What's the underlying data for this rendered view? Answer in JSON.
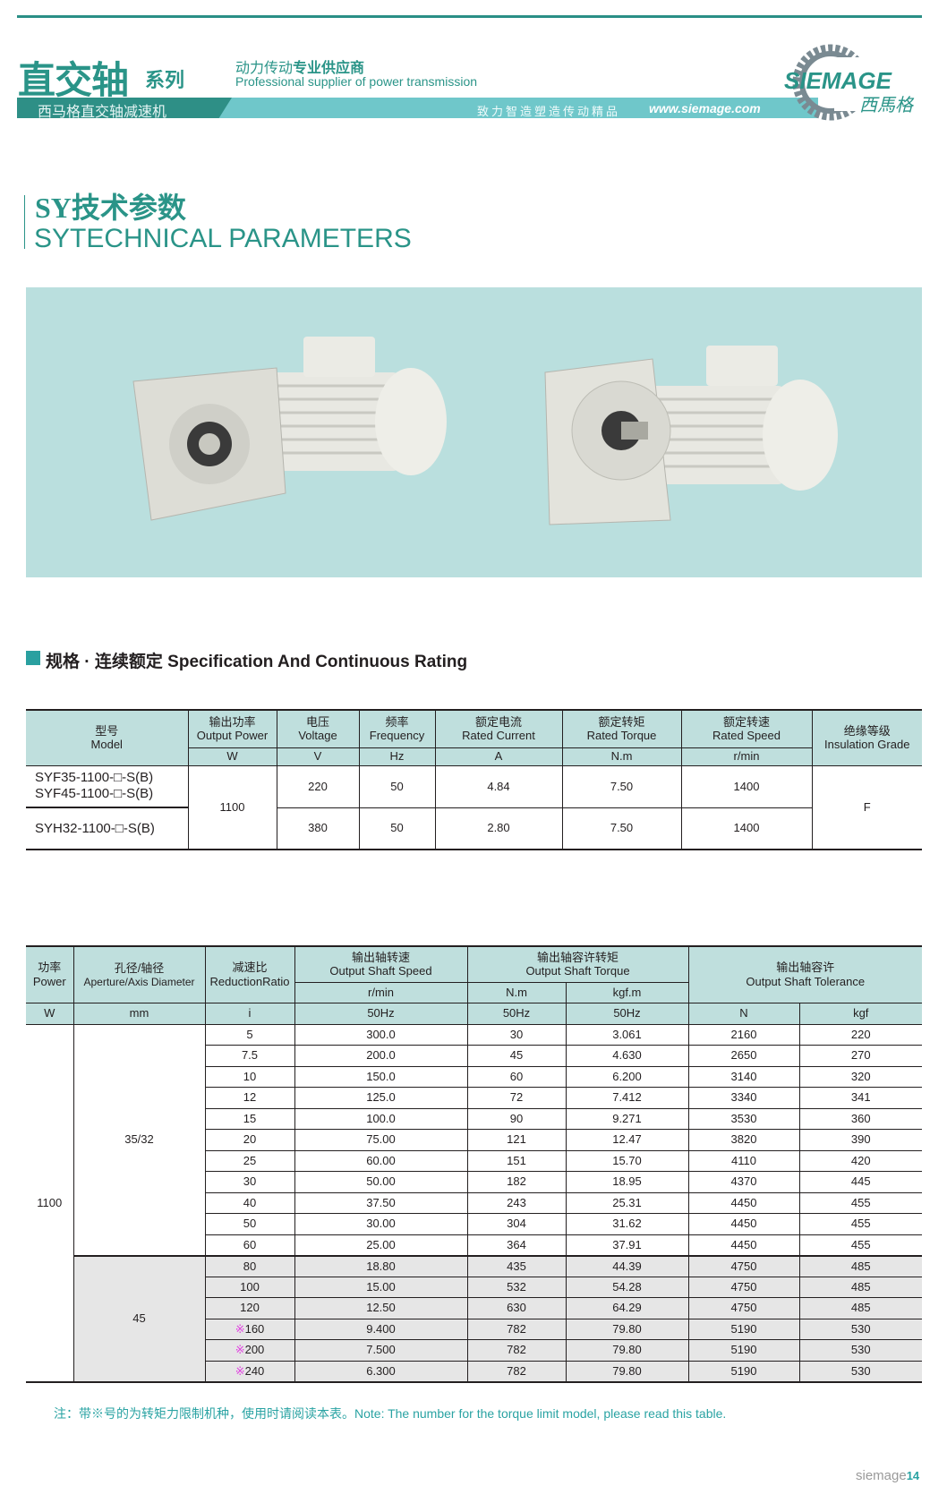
{
  "header": {
    "series_title": "直交轴",
    "series_suffix": "系列",
    "slogan_cn_light": "动力传动",
    "slogan_cn_bold": "专业供应商",
    "slogan_en": "Professional supplier of power transmission",
    "banner_left": "西马格直交轴减速机",
    "banner_motto": "致力智造塑造传动精品",
    "banner_url": "www.siemage.com",
    "logo_text": "SIEMAGE",
    "logo_cn": "西馬格"
  },
  "section": {
    "title": "SY技术参数",
    "subtitle": "SYTECHNICAL PARAMETERS"
  },
  "spec_heading": "规格 · 连续额定 Specification And Continuous Rating",
  "colors": {
    "accent": "#2a9488",
    "banner": "#6fc7ca",
    "header_bg": "#bfdfdd",
    "photo_bg": "#badfde",
    "mark": "#e040e0"
  },
  "table1": {
    "headers": [
      {
        "cn": "型号",
        "en": "Model"
      },
      {
        "cn": "输出功率",
        "en": "Output Power",
        "unit": "W"
      },
      {
        "cn": "电压",
        "en": "Voltage",
        "unit": "V"
      },
      {
        "cn": "频率",
        "en": "Frequency",
        "unit": "Hz"
      },
      {
        "cn": "额定电流",
        "en": "Rated Current",
        "unit": "A"
      },
      {
        "cn": "额定转矩",
        "en": "Rated Torque",
        "unit": "N.m"
      },
      {
        "cn": "额定转速",
        "en": "Rated Speed",
        "unit": "r/min"
      },
      {
        "cn": "绝缘等级",
        "en": "Insulation Grade"
      }
    ],
    "power": "1100",
    "grade": "F",
    "rows": [
      {
        "model": "SYF35-1100-□-S(B)",
        "model2": "SYF45-1100-□-S(B)",
        "voltage": "220",
        "freq": "50",
        "current": "4.84",
        "torque": "7.50",
        "speed": "1400"
      },
      {
        "model": "SYH32-1100-□-S(B)",
        "voltage": "380",
        "freq": "50",
        "current": "2.80",
        "torque": "7.50",
        "speed": "1400"
      }
    ]
  },
  "table2": {
    "headers": {
      "power": {
        "cn": "功率",
        "en": "Power",
        "unit": "W"
      },
      "aperture": {
        "cn": "孔径/轴径",
        "en": "Aperture/Axis Diameter",
        "unit": "mm"
      },
      "ratio": {
        "cn": "减速比",
        "en": "ReductionRatio",
        "unit": "i"
      },
      "speed": {
        "cn": "输出轴转速",
        "en": "Output Shaft Speed",
        "unit": "r/min",
        "hz": "50Hz"
      },
      "torque": {
        "cn": "输出轴容许转矩",
        "en": "Output Shaft Torque",
        "unit1": "N.m",
        "unit2": "kgf.m",
        "hz1": "50Hz",
        "hz2": "50Hz"
      },
      "tolerance": {
        "cn": "输出轴容许",
        "en": "Output Shaft Tolerance",
        "unit1": "N",
        "unit2": "kgf"
      }
    },
    "power": "1100",
    "aperture_a": "35/32",
    "aperture_b": "45",
    "rows": [
      {
        "mark": "",
        "ratio": "5",
        "speed": "300.0",
        "nm": "30",
        "kgfm": "3.061",
        "n": "2160",
        "kgf": "220"
      },
      {
        "mark": "",
        "ratio": "7.5",
        "speed": "200.0",
        "nm": "45",
        "kgfm": "4.630",
        "n": "2650",
        "kgf": "270"
      },
      {
        "mark": "",
        "ratio": "10",
        "speed": "150.0",
        "nm": "60",
        "kgfm": "6.200",
        "n": "3140",
        "kgf": "320"
      },
      {
        "mark": "",
        "ratio": "12",
        "speed": "125.0",
        "nm": "72",
        "kgfm": "7.412",
        "n": "3340",
        "kgf": "341"
      },
      {
        "mark": "",
        "ratio": "15",
        "speed": "100.0",
        "nm": "90",
        "kgfm": "9.271",
        "n": "3530",
        "kgf": "360"
      },
      {
        "mark": "",
        "ratio": "20",
        "speed": "75.00",
        "nm": "121",
        "kgfm": "12.47",
        "n": "3820",
        "kgf": "390"
      },
      {
        "mark": "",
        "ratio": "25",
        "speed": "60.00",
        "nm": "151",
        "kgfm": "15.70",
        "n": "4110",
        "kgf": "420"
      },
      {
        "mark": "",
        "ratio": "30",
        "speed": "50.00",
        "nm": "182",
        "kgfm": "18.95",
        "n": "4370",
        "kgf": "445"
      },
      {
        "mark": "",
        "ratio": "40",
        "speed": "37.50",
        "nm": "243",
        "kgfm": "25.31",
        "n": "4450",
        "kgf": "455"
      },
      {
        "mark": "",
        "ratio": "50",
        "speed": "30.00",
        "nm": "304",
        "kgfm": "31.62",
        "n": "4450",
        "kgf": "455"
      },
      {
        "mark": "",
        "ratio": "60",
        "speed": "25.00",
        "nm": "364",
        "kgfm": "37.91",
        "n": "4450",
        "kgf": "455"
      },
      {
        "mark": "",
        "ratio": "80",
        "speed": "18.80",
        "nm": "435",
        "kgfm": "44.39",
        "n": "4750",
        "kgf": "485"
      },
      {
        "mark": "",
        "ratio": "100",
        "speed": "15.00",
        "nm": "532",
        "kgfm": "54.28",
        "n": "4750",
        "kgf": "485"
      },
      {
        "mark": "",
        "ratio": "120",
        "speed": "12.50",
        "nm": "630",
        "kgfm": "64.29",
        "n": "4750",
        "kgf": "485"
      },
      {
        "mark": "※",
        "ratio": "160",
        "speed": "9.400",
        "nm": "782",
        "kgfm": "79.80",
        "n": "5190",
        "kgf": "530"
      },
      {
        "mark": "※",
        "ratio": "200",
        "speed": "7.500",
        "nm": "782",
        "kgfm": "79.80",
        "n": "5190",
        "kgf": "530"
      },
      {
        "mark": "※",
        "ratio": "240",
        "speed": "6.300",
        "nm": "782",
        "kgfm": "79.80",
        "n": "5190",
        "kgf": "530"
      }
    ]
  },
  "note": "注：带※号的为转矩力限制机种，使用时请阅读本表。Note: The number for the torque limit model, please read this table.",
  "footer": {
    "brand": "siemage",
    "page": "14"
  }
}
